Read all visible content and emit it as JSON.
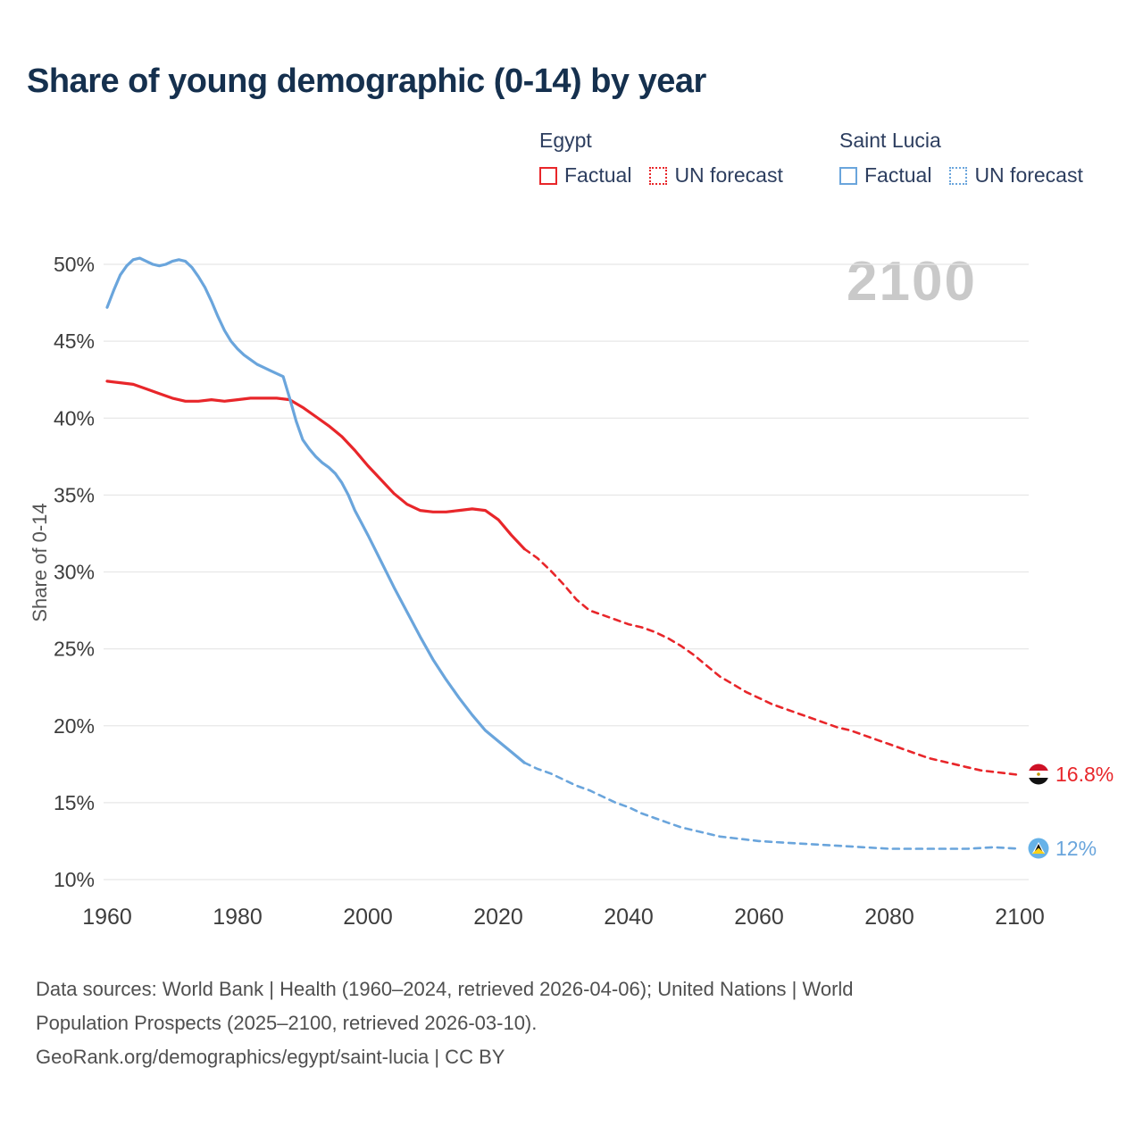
{
  "title": "Share of young demographic (0-14) by year",
  "watermark": "2100",
  "colors": {
    "egypt": "#e8262a",
    "saint_lucia": "#6aa5dc",
    "grid": "#e7e7e7",
    "axis_text": "#3d3d3d",
    "title_text": "#15304e",
    "watermark_text": "#c9c9c9"
  },
  "legend": {
    "groups": [
      {
        "name": "Egypt",
        "color": "#e8262a",
        "items": [
          {
            "label": "Factual",
            "style": "solid"
          },
          {
            "label": "UN forecast",
            "style": "dashed"
          }
        ]
      },
      {
        "name": "Saint Lucia",
        "color": "#6aa5dc",
        "items": [
          {
            "label": "Factual",
            "style": "solid"
          },
          {
            "label": "UN forecast",
            "style": "dashed"
          }
        ]
      }
    ]
  },
  "end_labels": [
    {
      "series": "Egypt",
      "text": "16.8%",
      "color": "#e8262a",
      "flag": "egypt-flag"
    },
    {
      "series": "Saint Lucia",
      "text": "12%",
      "color": "#6aa5dc",
      "flag": "saint-lucia-flag"
    }
  ],
  "footer": {
    "line1": "Data sources: World Bank | Health (1960–2024, retrieved 2026-04-06); United Nations | World",
    "line2": "Population Prospects (2025–2100, retrieved 2026-03-10).",
    "line3": "GeoRank.org/demographics/egypt/saint-lucia | CC BY"
  },
  "chart_data": {
    "type": "line",
    "title": "Share of young demographic (0-14) by year",
    "xlabel": "",
    "ylabel": "Share of 0-14",
    "xlim": [
      1960,
      2100
    ],
    "ylim": [
      10,
      50
    ],
    "xticks": [
      1960,
      1980,
      2000,
      2020,
      2040,
      2060,
      2080,
      2100
    ],
    "yticks": [
      10,
      15,
      20,
      25,
      30,
      35,
      40,
      45,
      50
    ],
    "grid": "horizontal",
    "legend_position": "top",
    "series": [
      {
        "name": "Egypt",
        "segment": "Factual",
        "style": "solid",
        "color": "#e8262a",
        "points": [
          [
            1960,
            42.4
          ],
          [
            1962,
            42.3
          ],
          [
            1964,
            42.2
          ],
          [
            1966,
            41.9
          ],
          [
            1968,
            41.6
          ],
          [
            1970,
            41.3
          ],
          [
            1972,
            41.1
          ],
          [
            1974,
            41.1
          ],
          [
            1976,
            41.2
          ],
          [
            1978,
            41.1
          ],
          [
            1980,
            41.2
          ],
          [
            1982,
            41.3
          ],
          [
            1984,
            41.3
          ],
          [
            1986,
            41.3
          ],
          [
            1988,
            41.2
          ],
          [
            1990,
            40.7
          ],
          [
            1992,
            40.1
          ],
          [
            1994,
            39.5
          ],
          [
            1996,
            38.8
          ],
          [
            1998,
            37.9
          ],
          [
            2000,
            36.9
          ],
          [
            2002,
            36.0
          ],
          [
            2004,
            35.1
          ],
          [
            2006,
            34.4
          ],
          [
            2008,
            34.0
          ],
          [
            2010,
            33.9
          ],
          [
            2012,
            33.9
          ],
          [
            2014,
            34.0
          ],
          [
            2016,
            34.1
          ],
          [
            2018,
            34.0
          ],
          [
            2020,
            33.4
          ],
          [
            2022,
            32.4
          ],
          [
            2024,
            31.5
          ]
        ]
      },
      {
        "name": "Egypt",
        "segment": "UN forecast",
        "style": "dashed",
        "color": "#e8262a",
        "points": [
          [
            2024,
            31.5
          ],
          [
            2026,
            30.9
          ],
          [
            2028,
            30.1
          ],
          [
            2030,
            29.2
          ],
          [
            2032,
            28.2
          ],
          [
            2034,
            27.5
          ],
          [
            2036,
            27.2
          ],
          [
            2038,
            26.9
          ],
          [
            2040,
            26.6
          ],
          [
            2042,
            26.4
          ],
          [
            2044,
            26.1
          ],
          [
            2046,
            25.7
          ],
          [
            2048,
            25.2
          ],
          [
            2050,
            24.6
          ],
          [
            2052,
            23.9
          ],
          [
            2054,
            23.2
          ],
          [
            2056,
            22.7
          ],
          [
            2058,
            22.2
          ],
          [
            2060,
            21.8
          ],
          [
            2062,
            21.4
          ],
          [
            2064,
            21.1
          ],
          [
            2066,
            20.8
          ],
          [
            2068,
            20.5
          ],
          [
            2070,
            20.2
          ],
          [
            2072,
            19.9
          ],
          [
            2074,
            19.7
          ],
          [
            2076,
            19.4
          ],
          [
            2078,
            19.1
          ],
          [
            2080,
            18.8
          ],
          [
            2082,
            18.5
          ],
          [
            2084,
            18.2
          ],
          [
            2086,
            17.9
          ],
          [
            2088,
            17.7
          ],
          [
            2090,
            17.5
          ],
          [
            2092,
            17.3
          ],
          [
            2094,
            17.1
          ],
          [
            2096,
            17.0
          ],
          [
            2098,
            16.9
          ],
          [
            2100,
            16.8
          ]
        ]
      },
      {
        "name": "Saint Lucia",
        "segment": "Factual",
        "style": "solid",
        "color": "#6aa5dc",
        "points": [
          [
            1960,
            47.2
          ],
          [
            1961,
            48.3
          ],
          [
            1962,
            49.3
          ],
          [
            1963,
            49.9
          ],
          [
            1964,
            50.3
          ],
          [
            1965,
            50.4
          ],
          [
            1966,
            50.2
          ],
          [
            1967,
            50.0
          ],
          [
            1968,
            49.9
          ],
          [
            1969,
            50.0
          ],
          [
            1970,
            50.2
          ],
          [
            1971,
            50.3
          ],
          [
            1972,
            50.2
          ],
          [
            1973,
            49.8
          ],
          [
            1974,
            49.2
          ],
          [
            1975,
            48.5
          ],
          [
            1976,
            47.6
          ],
          [
            1977,
            46.6
          ],
          [
            1978,
            45.7
          ],
          [
            1979,
            45.0
          ],
          [
            1980,
            44.5
          ],
          [
            1981,
            44.1
          ],
          [
            1982,
            43.8
          ],
          [
            1983,
            43.5
          ],
          [
            1984,
            43.3
          ],
          [
            1985,
            43.1
          ],
          [
            1986,
            42.9
          ],
          [
            1987,
            42.7
          ],
          [
            1988,
            41.3
          ],
          [
            1989,
            39.8
          ],
          [
            1990,
            38.6
          ],
          [
            1991,
            38.0
          ],
          [
            1992,
            37.5
          ],
          [
            1993,
            37.1
          ],
          [
            1994,
            36.8
          ],
          [
            1995,
            36.4
          ],
          [
            1996,
            35.8
          ],
          [
            1997,
            35.0
          ],
          [
            1998,
            34.0
          ],
          [
            1999,
            33.2
          ],
          [
            2000,
            32.4
          ],
          [
            2002,
            30.7
          ],
          [
            2004,
            29.0
          ],
          [
            2006,
            27.4
          ],
          [
            2008,
            25.8
          ],
          [
            2010,
            24.3
          ],
          [
            2012,
            23.0
          ],
          [
            2014,
            21.8
          ],
          [
            2016,
            20.7
          ],
          [
            2018,
            19.7
          ],
          [
            2020,
            19.0
          ],
          [
            2022,
            18.3
          ],
          [
            2024,
            17.6
          ]
        ]
      },
      {
        "name": "Saint Lucia",
        "segment": "UN forecast",
        "style": "dashed",
        "color": "#6aa5dc",
        "points": [
          [
            2024,
            17.6
          ],
          [
            2026,
            17.2
          ],
          [
            2028,
            16.9
          ],
          [
            2030,
            16.5
          ],
          [
            2032,
            16.1
          ],
          [
            2034,
            15.8
          ],
          [
            2036,
            15.4
          ],
          [
            2038,
            15.0
          ],
          [
            2040,
            14.7
          ],
          [
            2042,
            14.3
          ],
          [
            2044,
            14.0
          ],
          [
            2046,
            13.7
          ],
          [
            2048,
            13.4
          ],
          [
            2050,
            13.2
          ],
          [
            2052,
            13.0
          ],
          [
            2054,
            12.8
          ],
          [
            2056,
            12.7
          ],
          [
            2058,
            12.6
          ],
          [
            2060,
            12.5
          ],
          [
            2064,
            12.4
          ],
          [
            2068,
            12.3
          ],
          [
            2072,
            12.2
          ],
          [
            2076,
            12.1
          ],
          [
            2080,
            12.0
          ],
          [
            2084,
            12.0
          ],
          [
            2088,
            12.0
          ],
          [
            2092,
            12.0
          ],
          [
            2096,
            12.1
          ],
          [
            2100,
            12.0
          ]
        ]
      }
    ],
    "end_values": {
      "Egypt": 16.8,
      "Saint Lucia": 12.0
    }
  }
}
